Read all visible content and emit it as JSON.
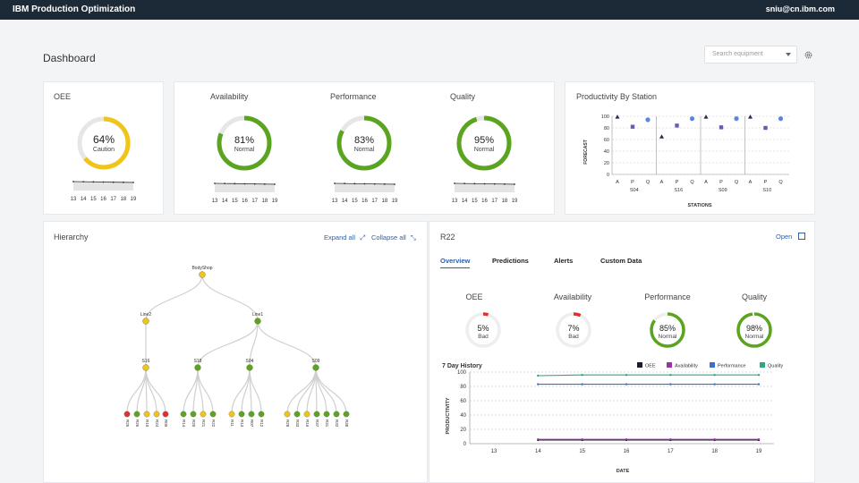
{
  "topbar": {
    "brand": "IBM Production Optimization",
    "user": "sniu@cn.ibm.com"
  },
  "page": {
    "title": "Dashboard"
  },
  "search": {
    "placeholder": "Search equipment"
  },
  "colors": {
    "good": "#5aa41f",
    "caution": "#f0c419",
    "bad": "#e03030",
    "accent": "#2d5fa8",
    "track": "#e6e6e6"
  },
  "kpis": [
    {
      "key": "oee",
      "title": "OEE",
      "value": "64%",
      "status": "Caution",
      "fraction": 0.64
    },
    {
      "key": "availability",
      "title": "Availability",
      "value": "81%",
      "status": "Normal",
      "fraction": 0.81
    },
    {
      "key": "performance",
      "title": "Performance",
      "value": "83%",
      "status": "Normal",
      "fraction": 0.83
    },
    {
      "key": "quality",
      "title": "Quality",
      "value": "95%",
      "status": "Normal",
      "fraction": 0.95
    }
  ],
  "sparkline_days": [
    "13",
    "14",
    "15",
    "16",
    "17",
    "18",
    "19"
  ],
  "productivity": {
    "title": "Productivity By Station",
    "ylabel": "FORECAST",
    "xlabel": "STATIONS",
    "yticks": [
      "100",
      "80",
      "60",
      "40",
      "20",
      "0"
    ],
    "metrics": [
      "A",
      "P",
      "Q"
    ],
    "stations": [
      "S04",
      "S16",
      "S09",
      "S10"
    ]
  },
  "hierarchy": {
    "title": "Hierarchy",
    "expand_all": "Expand all",
    "collapse_all": "Collapse all",
    "root": "BodyShop",
    "lines": [
      "Line2",
      "Line1"
    ],
    "stations": [
      "S16",
      "S18",
      "S04",
      "S09"
    ],
    "leaves": [
      [
        "R25",
        "R26",
        "R10",
        "R24",
        "R09"
      ],
      [
        "R14",
        "R20",
        "R21",
        "R22"
      ],
      [
        "R11",
        "R13",
        "R07",
        "R12"
      ],
      [
        "R28",
        "R33",
        "R16",
        "R37",
        "R31",
        "R32",
        "R38"
      ]
    ]
  },
  "detail": {
    "title": "R22",
    "open_label": "Open",
    "tabs": [
      "Overview",
      "Predictions",
      "Alerts",
      "Custom Data"
    ],
    "gauges": [
      {
        "title": "OEE",
        "value": "5%",
        "status": "Bad",
        "fraction": 0.05
      },
      {
        "title": "Availability",
        "value": "7%",
        "status": "Bad",
        "fraction": 0.07
      },
      {
        "title": "Performance",
        "value": "85%",
        "status": "Normal",
        "fraction": 0.85
      },
      {
        "title": "Quality",
        "value": "98%",
        "status": "Normal",
        "fraction": 0.98
      }
    ]
  },
  "chart_data": {
    "type": "line",
    "title": "7 Day History",
    "xlabel": "DATE",
    "ylabel": "PRODUCTIVITY",
    "x": [
      13,
      14,
      15,
      16,
      17,
      18,
      19
    ],
    "ylim": [
      0,
      100
    ],
    "yticks": [
      0,
      20,
      40,
      60,
      80,
      100
    ],
    "grid": true,
    "legend": "top-right",
    "series": [
      {
        "name": "OEE",
        "color": "#1c1c2e",
        "x": [
          14,
          15,
          16,
          17,
          18,
          19
        ],
        "values": [
          5,
          5,
          5,
          5,
          5,
          5
        ]
      },
      {
        "name": "Availability",
        "color": "#9b30a8",
        "x": [
          14,
          15,
          16,
          17,
          18,
          19
        ],
        "values": [
          6,
          6,
          6,
          6,
          6,
          6
        ]
      },
      {
        "name": "Performance",
        "color": "#3a6fd0",
        "x": [
          14,
          15,
          16,
          17,
          18,
          19
        ],
        "values": [
          83,
          83,
          83,
          83,
          83,
          83
        ]
      },
      {
        "name": "Quality",
        "color": "#2aa784",
        "x": [
          14,
          15,
          16,
          17,
          18,
          19
        ],
        "values": [
          95,
          96,
          96,
          96,
          96,
          96
        ]
      }
    ]
  }
}
